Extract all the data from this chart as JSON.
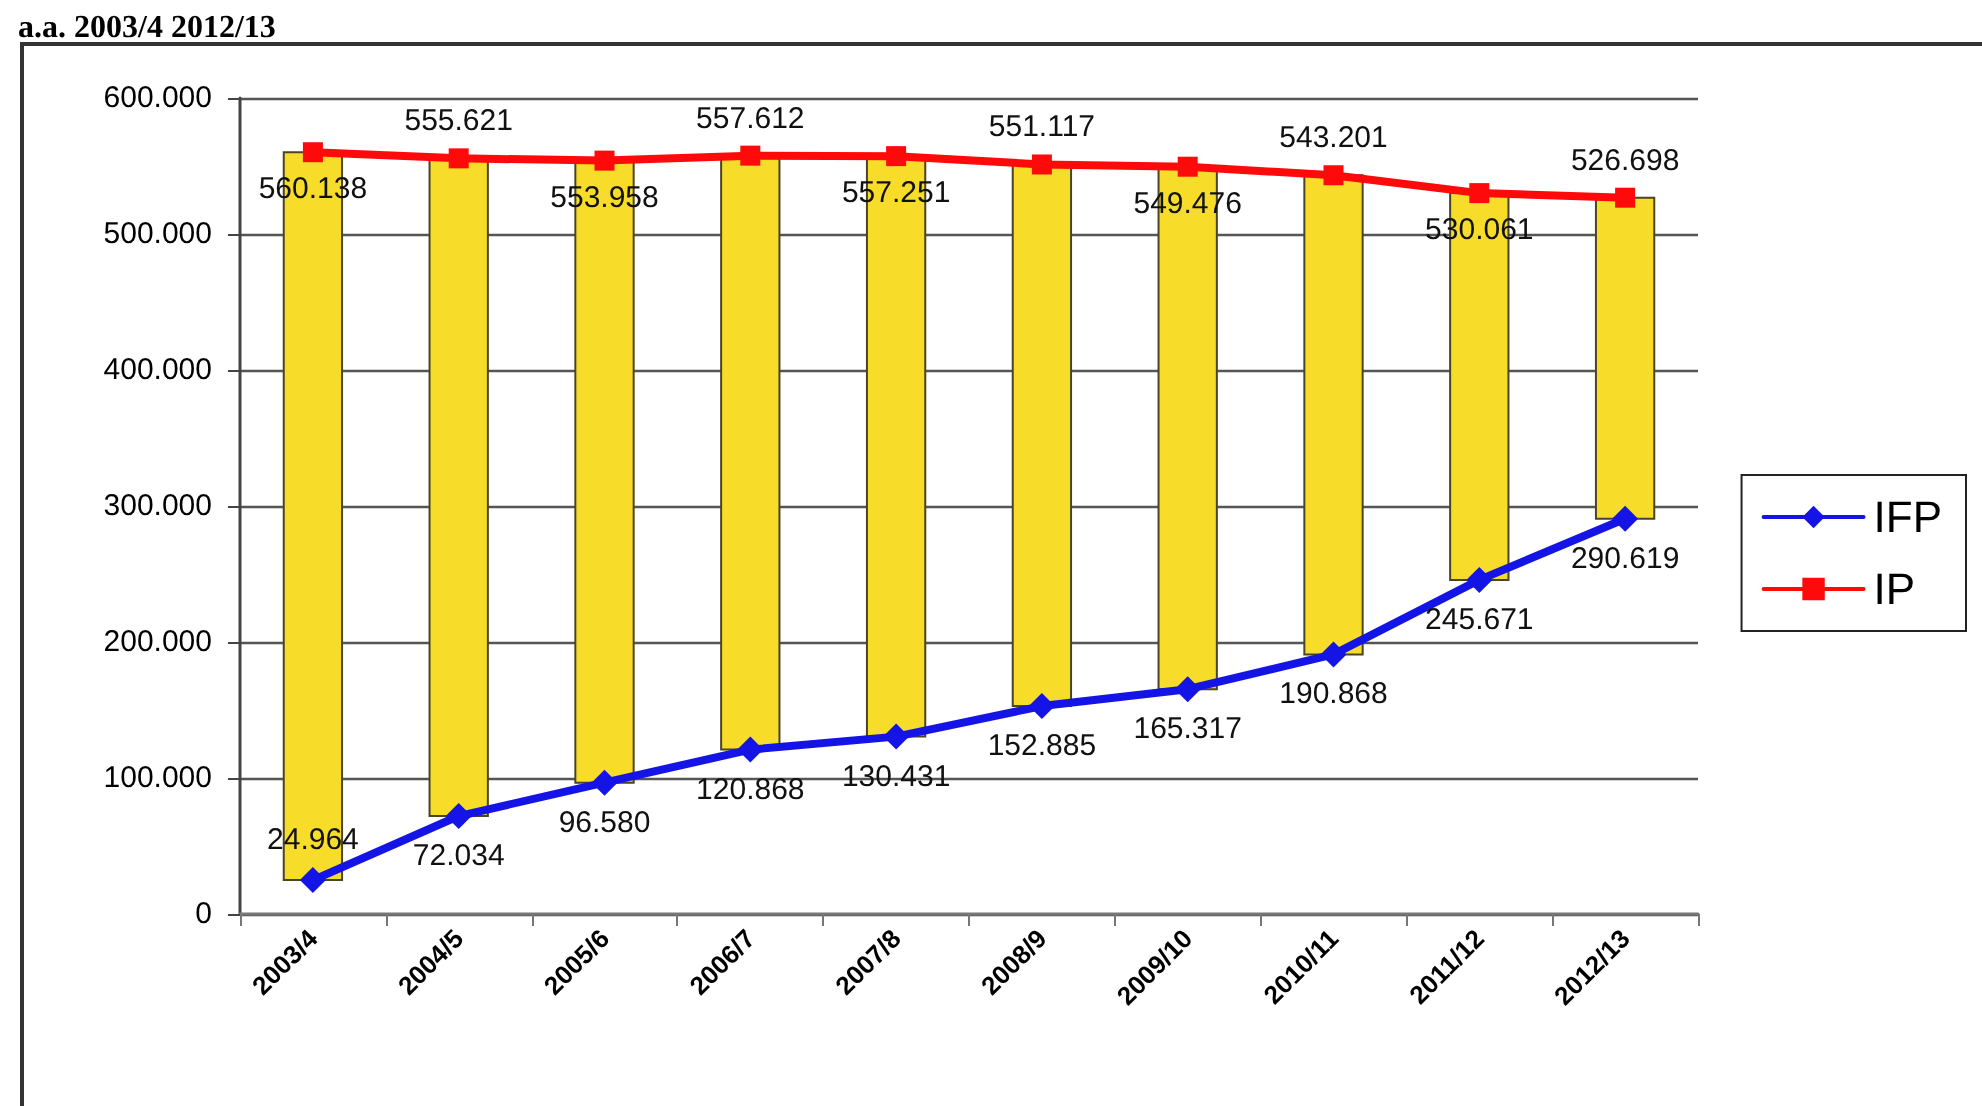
{
  "chart_data": {
    "type": "line",
    "title": "a.a. 2003/4 2012/13",
    "categories": [
      "2003/4",
      "2004/5",
      "2005/6",
      "2006/7",
      "2007/8",
      "2008/9",
      "2009/10",
      "2010/11",
      "2011/12",
      "2012/13"
    ],
    "series": [
      {
        "type": "bar",
        "color": "#f7dc2a",
        "base": [
          24964,
          72034,
          96580,
          120868,
          130431,
          152885,
          165317,
          190868,
          245671,
          290619
        ],
        "values": [
          535174,
          483587,
          457378,
          436744,
          426820,
          398232,
          384159,
          352333,
          284390,
          236079
        ]
      },
      {
        "name": "IFP",
        "color": "#1414e6",
        "marker": "diamond",
        "values": [
          24964,
          72034,
          96580,
          120868,
          130431,
          152885,
          165317,
          190868,
          245671,
          290619
        ],
        "value_labels": [
          "24.964",
          "72.034",
          "96.580",
          "120.868",
          "130.431",
          "152.885",
          "165.317",
          "190.868",
          "245.671",
          "290.619"
        ]
      },
      {
        "name": "IP",
        "color": "#ff0a0a",
        "marker": "square",
        "values": [
          560138,
          555621,
          553958,
          557612,
          557251,
          551117,
          549476,
          543201,
          530061,
          526698
        ],
        "value_labels": [
          "560.138",
          "555.621",
          "553.958",
          "557.612",
          "557.251",
          "551.117",
          "549.476",
          "543.201",
          "530.061",
          "526.698"
        ]
      }
    ],
    "ylim": [
      0,
      600000
    ],
    "yticks": [
      0,
      {
        "value": 100000,
        "label": "100.000"
      },
      {
        "value": 200000,
        "label": "200.000"
      },
      {
        "value": 300000,
        "label": "300.000"
      },
      {
        "value": 400000,
        "label": "400.000"
      },
      {
        "value": 500000,
        "label": "500.000"
      },
      {
        "value": 600000,
        "label": "600.000"
      }
    ],
    "grid": "y",
    "legend": "right"
  }
}
